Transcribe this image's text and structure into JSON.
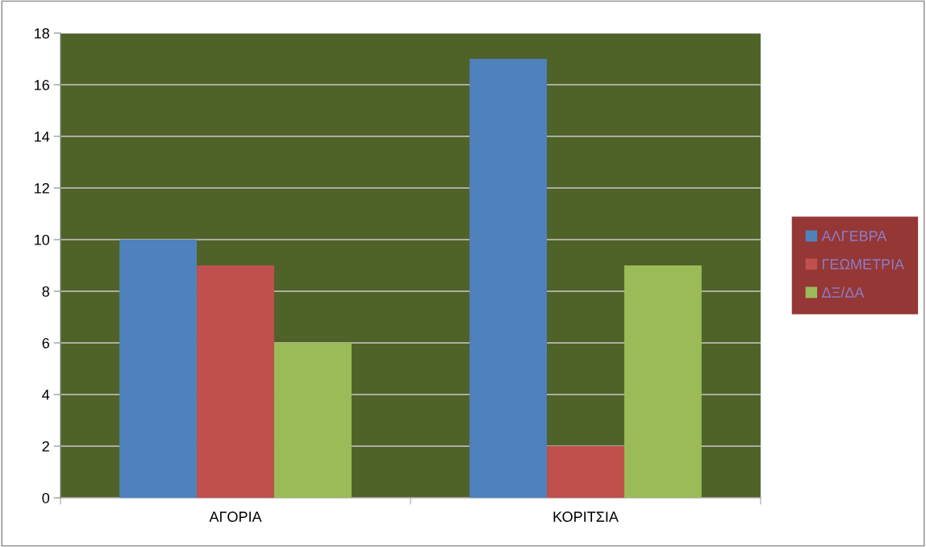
{
  "chart_data": {
    "type": "bar",
    "categories": [
      "ΑΓΟΡΙΑ",
      "ΚΟΡΙΤΣΙΑ"
    ],
    "series": [
      {
        "name": "ΑΛΓΕΒΡΑ",
        "color": "#4f81bd",
        "values": [
          10,
          17
        ]
      },
      {
        "name": "ΓΕΩΜΕΤΡΙΑ",
        "color": "#c0504d",
        "values": [
          9,
          2
        ]
      },
      {
        "name": "ΔΞ/ΔΑ",
        "color": "#9bbb59",
        "values": [
          6,
          9
        ]
      }
    ],
    "ylim": [
      0,
      18
    ],
    "yticks": [
      0,
      2,
      4,
      6,
      8,
      10,
      12,
      14,
      16,
      18
    ],
    "grid": "y",
    "legend": "right"
  }
}
